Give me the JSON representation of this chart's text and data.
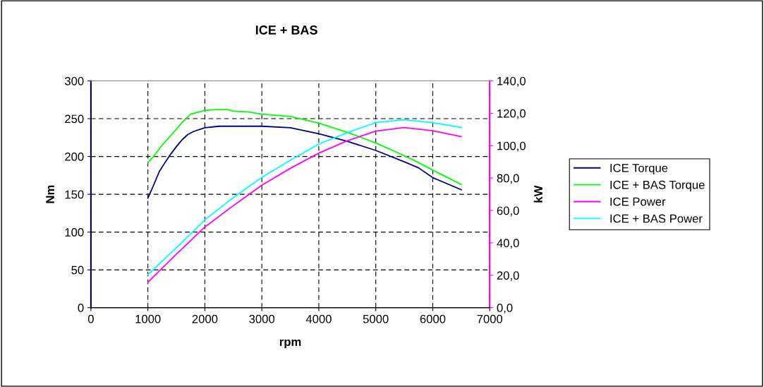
{
  "chart_data": {
    "type": "line",
    "title": "ICE + BAS",
    "xlabel": "rpm",
    "ylabel": "Nm",
    "y2label": "kW",
    "xlim": [
      0,
      7000
    ],
    "xticks": [
      0,
      1000,
      2000,
      3000,
      4000,
      5000,
      6000,
      7000
    ],
    "ylim": [
      0,
      300
    ],
    "yticks": [
      0,
      50,
      100,
      150,
      200,
      250,
      300
    ],
    "y2lim": [
      0,
      140
    ],
    "y2ticks": [
      {
        "value": 0,
        "label": "0,0"
      },
      {
        "value": 20,
        "label": "20,0"
      },
      {
        "value": 40,
        "label": "40,0"
      },
      {
        "value": 60,
        "label": "60,0"
      },
      {
        "value": 80,
        "label": "80,0"
      },
      {
        "value": 100,
        "label": "100,0"
      },
      {
        "value": 120,
        "label": "120,0"
      },
      {
        "value": 140,
        "label": "140,0"
      }
    ],
    "grid": true,
    "legend": "right",
    "marker": "none",
    "line_style": "solid",
    "series": [
      {
        "name": "ICE Torque",
        "color": "#000080",
        "x": [
          1000,
          1100,
          1200,
          1300,
          1400,
          1500,
          1600,
          1700,
          1800,
          2000,
          2250,
          3000,
          3500,
          4000,
          4500,
          5000,
          5500,
          5750,
          6000,
          6500
        ],
        "values": [
          145,
          162,
          180,
          192,
          203,
          213,
          222,
          229,
          233,
          238,
          240,
          240,
          238,
          230,
          220,
          208,
          193,
          185,
          172,
          156
        ]
      },
      {
        "name": "ICE + BAS Torque",
        "color": "#00ff00",
        "x": [
          1000,
          1100,
          1250,
          1500,
          1600,
          1750,
          2000,
          2200,
          2400,
          2500,
          2750,
          3000,
          3500,
          4000,
          4500,
          5000,
          5500,
          5750,
          6000,
          6500
        ],
        "values": [
          192,
          200,
          215,
          236,
          245,
          256,
          261,
          262,
          262,
          260,
          259,
          256,
          253,
          244,
          232,
          218,
          201,
          192,
          182,
          163
        ]
      },
      {
        "name": "ICE Power",
        "color": "#ff00ff",
        "axis": "y2",
        "x": [
          1000,
          1500,
          2000,
          2500,
          3000,
          3500,
          4000,
          4500,
          5000,
          5500,
          6000,
          6500
        ],
        "values": [
          15.7,
          33,
          49.8,
          63,
          75.6,
          86,
          95.4,
          103,
          109,
          111.2,
          109.2,
          105.6
        ]
      },
      {
        "name": "ICE + BAS Power",
        "color": "#00ffff",
        "axis": "y2",
        "x": [
          1000,
          1500,
          2000,
          2500,
          3000,
          3500,
          4000,
          4500,
          5000,
          5500,
          6000,
          6500
        ],
        "values": [
          20.4,
          37,
          54.2,
          68,
          80.4,
          91,
          101,
          108,
          114.2,
          116,
          114.2,
          111.2
        ]
      }
    ]
  }
}
